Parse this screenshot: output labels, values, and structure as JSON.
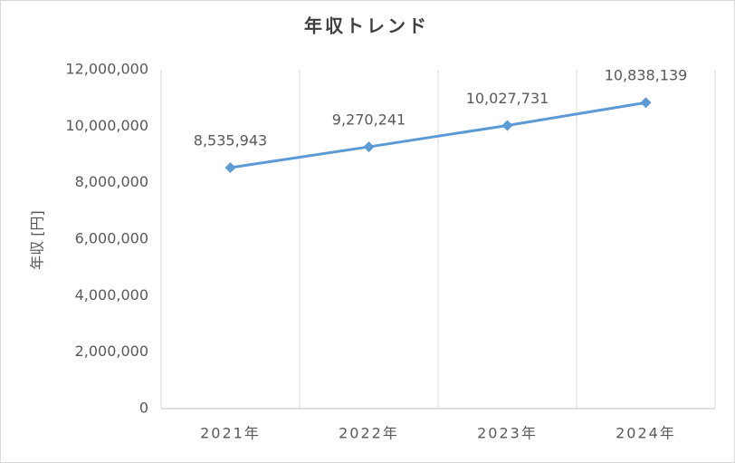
{
  "chart_data": {
    "type": "line",
    "title": "年収トレンド",
    "y_label": "年収 [円]",
    "categories": [
      "2021年",
      "2022年",
      "2023年",
      "2024年"
    ],
    "series": [
      {
        "name": "年収",
        "color": "#5b9bd5",
        "values": [
          8535943,
          9270241,
          10027731,
          10838139
        ],
        "value_labels": [
          "8,535,943",
          "9,270,241",
          "10,027,731",
          "10,838,139"
        ]
      }
    ],
    "ylim": [
      0,
      12000000
    ],
    "yticks": [
      0,
      {
        "value": 2000000,
        "label": "2,000,000"
      },
      {
        "value": 4000000,
        "label": "4,000,000"
      },
      {
        "value": 6000000,
        "label": "6,000,000"
      },
      {
        "value": 8000000,
        "label": "8,000,000"
      },
      {
        "value": 10000000,
        "label": "10,000,000"
      },
      {
        "value": 12000000,
        "label": "12,000,000"
      }
    ],
    "grid": true,
    "legend": false
  }
}
